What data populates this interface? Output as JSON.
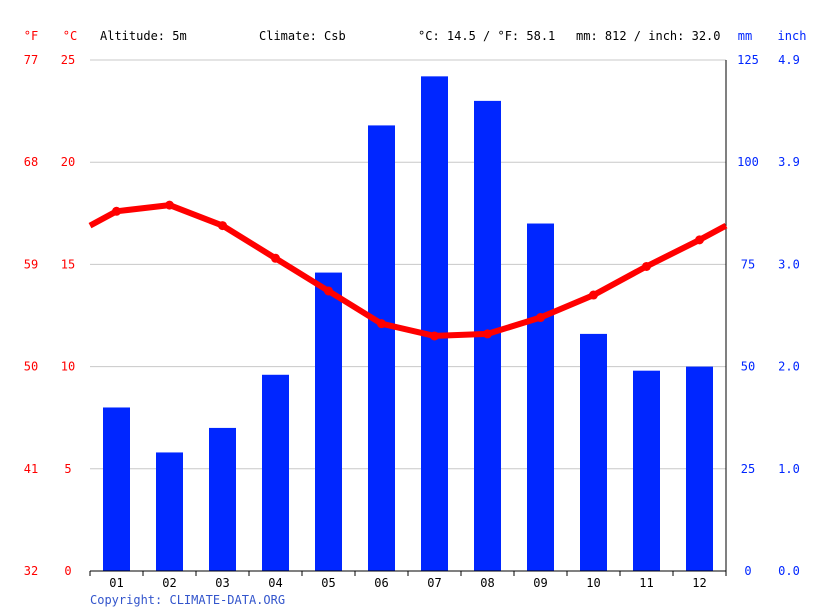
{
  "header": {
    "altitude": "Altitude: 5m",
    "climate": "Climate: Csb",
    "temp_avg": "°C: 14.5 / °F: 58.1",
    "precip_total": "mm: 812 / inch: 32.0",
    "unit_f": "°F",
    "unit_c": "°C",
    "unit_mm": "mm",
    "unit_inch": "inch"
  },
  "copyright": "Copyright: CLIMATE-DATA.ORG",
  "colors": {
    "temperature": "#ff0000",
    "precipitation": "#0026ff",
    "grid": "#c8c8c8",
    "axis": "#000000",
    "text": "#000000",
    "copyright": "#3355cc"
  },
  "chart_data": {
    "type": "bar",
    "categories": [
      "01",
      "02",
      "03",
      "04",
      "05",
      "06",
      "07",
      "08",
      "09",
      "10",
      "11",
      "12"
    ],
    "axes": {
      "celsius": {
        "ticks": [
          "0",
          "5",
          "10",
          "15",
          "20",
          "25"
        ],
        "range": [
          0,
          25
        ]
      },
      "fahrenheit": {
        "ticks": [
          "32",
          "41",
          "50",
          "59",
          "68",
          "77"
        ]
      },
      "mm": {
        "ticks": [
          "0",
          "25",
          "50",
          "75",
          "100",
          "125"
        ],
        "range": [
          0,
          125
        ]
      },
      "inch": {
        "ticks": [
          "0.0",
          "1.0",
          "2.0",
          "3.0",
          "3.9",
          "4.9"
        ]
      }
    },
    "grid": true,
    "series": [
      {
        "kind": "bar",
        "axis": "mm",
        "values": [
          40,
          29,
          35,
          48,
          73,
          109,
          121,
          115,
          85,
          58,
          49,
          50
        ]
      },
      {
        "kind": "line",
        "axis": "celsius",
        "values": [
          17.6,
          17.9,
          16.9,
          15.3,
          13.7,
          12.1,
          11.5,
          11.6,
          12.4,
          13.5,
          14.9,
          16.2
        ],
        "edge_values": [
          16.9,
          16.9
        ]
      }
    ]
  }
}
